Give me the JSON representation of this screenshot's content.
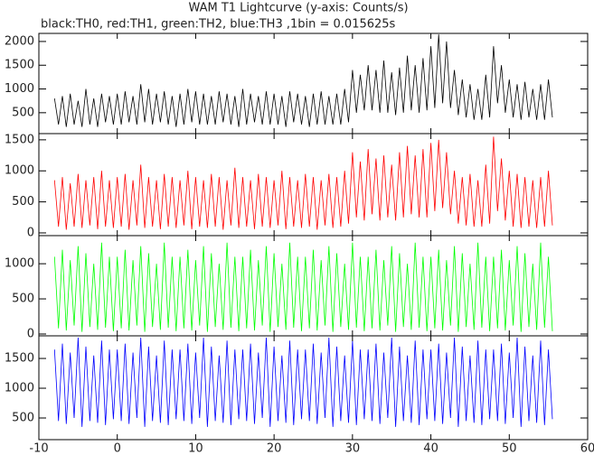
{
  "chart_data": [
    {
      "type": "line",
      "title": "WAM T1 Lightcurve (y-axis: Counts/s)",
      "subtitle": "black:TH0, red:TH1, green:TH2, blue:TH3 ,1bin = 0.015625s",
      "color": "#000000",
      "x": [
        -8,
        -7.5,
        -7,
        -6.5,
        -6,
        -5.5,
        -5,
        -4.5,
        -4,
        -3.5,
        -3,
        -2.5,
        -2,
        -1.5,
        -1,
        -0.5,
        0,
        0.5,
        1,
        1.5,
        2,
        2.5,
        3,
        3.5,
        4,
        4.5,
        5,
        5.5,
        6,
        6.5,
        7,
        7.5,
        8,
        8.5,
        9,
        9.5,
        10,
        10.5,
        11,
        11.5,
        12,
        12.5,
        13,
        13.5,
        14,
        14.5,
        15,
        15.5,
        16,
        16.5,
        17,
        17.5,
        18,
        18.5,
        19,
        19.5,
        20,
        20.5,
        21,
        21.5,
        22,
        22.5,
        23,
        23.5,
        24,
        24.5,
        25,
        25.5,
        26,
        26.5,
        27,
        27.5,
        28,
        28.5,
        29,
        29.5,
        30,
        30.5,
        31,
        31.5,
        32,
        32.5,
        33,
        33.5,
        34,
        34.5,
        35,
        35.5,
        36,
        36.5,
        37,
        37.5,
        38,
        38.5,
        39,
        39.5,
        40,
        40.5,
        41,
        41.5,
        42,
        42.5,
        43,
        43.5,
        44,
        44.5,
        45,
        45.5,
        46,
        46.5,
        47,
        47.5,
        48,
        48.5,
        49,
        49.5,
        50,
        50.5,
        51,
        51.5,
        52,
        52.5,
        53,
        53.5,
        54,
        54.5,
        55,
        55.5
      ],
      "values": [
        800,
        250,
        850,
        200,
        900,
        250,
        750,
        200,
        1000,
        250,
        800,
        200,
        900,
        300,
        850,
        250,
        900,
        250,
        950,
        300,
        850,
        250,
        1100,
        300,
        1000,
        250,
        900,
        300,
        950,
        250,
        850,
        200,
        900,
        250,
        1000,
        300,
        950,
        250,
        900,
        250,
        850,
        250,
        950,
        300,
        900,
        250,
        850,
        200,
        1000,
        250,
        900,
        300,
        850,
        250,
        950,
        250,
        900,
        250,
        850,
        200,
        950,
        300,
        900,
        250,
        850,
        200,
        900,
        250,
        950,
        250,
        850,
        250,
        900,
        250,
        1000,
        300,
        1400,
        500,
        1300,
        550,
        1500,
        550,
        1400,
        500,
        1600,
        500,
        1350,
        450,
        1450,
        500,
        1700,
        550,
        1500,
        500,
        1650,
        550,
        1900,
        600,
        2150,
        700,
        2000,
        600,
        1400,
        450,
        1200,
        400,
        1100,
        350,
        1000,
        350,
        1300,
        400,
        1900,
        700,
        1500,
        500,
        1200,
        400,
        1100,
        350,
        1150,
        400,
        1000,
        350,
        1100,
        350,
        1200,
        400
      ],
      "ylim": [
        60,
        2170
      ],
      "yticks": [
        500,
        1000,
        1500,
        2000
      ]
    },
    {
      "type": "line",
      "color": "#ff0000",
      "values": [
        850,
        100,
        900,
        50,
        800,
        100,
        950,
        80,
        850,
        120,
        900,
        60,
        1000,
        100,
        850,
        80,
        900,
        100,
        950,
        50,
        850,
        120,
        1100,
        80,
        900,
        100,
        850,
        60,
        950,
        100,
        900,
        80,
        850,
        120,
        1000,
        60,
        900,
        100,
        850,
        80,
        950,
        100,
        900,
        50,
        850,
        120,
        1050,
        80,
        900,
        100,
        850,
        60,
        950,
        100,
        900,
        80,
        850,
        120,
        1000,
        60,
        900,
        100,
        850,
        80,
        950,
        100,
        900,
        50,
        850,
        120,
        950,
        80,
        900,
        100,
        1000,
        150,
        1300,
        250,
        1150,
        200,
        1350,
        300,
        1200,
        200,
        1250,
        250,
        1100,
        200,
        1300,
        250,
        1400,
        300,
        1250,
        250,
        1350,
        250,
        1450,
        350,
        1500,
        400,
        1300,
        300,
        1000,
        150,
        900,
        120,
        950,
        100,
        850,
        100,
        1100,
        150,
        1550,
        350,
        1200,
        200,
        1000,
        100,
        950,
        80,
        900,
        100,
        850,
        80,
        900,
        100,
        1000,
        120
      ],
      "ylim": [
        -44,
        1600
      ],
      "yticks": [
        0,
        500,
        1000,
        1500
      ]
    },
    {
      "type": "line",
      "color": "#00ff00",
      "values": [
        1100,
        80,
        1200,
        50,
        1050,
        120,
        1250,
        30,
        1150,
        100,
        1000,
        60,
        1300,
        90,
        1100,
        40,
        1100,
        80,
        1200,
        50,
        1050,
        120,
        1250,
        30,
        1150,
        100,
        1000,
        60,
        1300,
        90,
        1100,
        40,
        1100,
        80,
        1200,
        50,
        1050,
        120,
        1250,
        30,
        1150,
        100,
        1000,
        60,
        1300,
        90,
        1100,
        40,
        1100,
        80,
        1200,
        50,
        1050,
        120,
        1250,
        30,
        1150,
        100,
        1000,
        60,
        1300,
        90,
        1100,
        40,
        1100,
        80,
        1200,
        50,
        1050,
        120,
        1250,
        30,
        1150,
        100,
        1000,
        60,
        1300,
        90,
        1100,
        40,
        1100,
        80,
        1200,
        50,
        1050,
        120,
        1250,
        30,
        1150,
        100,
        1000,
        60,
        1300,
        90,
        1100,
        40,
        1100,
        80,
        1200,
        50,
        1050,
        120,
        1250,
        30,
        1150,
        100,
        1000,
        60,
        1300,
        90,
        1100,
        40,
        1100,
        80,
        1200,
        50,
        1050,
        120,
        1250,
        30,
        1150,
        100,
        1000,
        60,
        1300,
        90,
        1100,
        40
      ],
      "ylim": [
        -26,
        1400
      ],
      "yticks": [
        0,
        500,
        1000
      ]
    },
    {
      "type": "line",
      "color": "#0000ff",
      "values": [
        1650,
        450,
        1750,
        400,
        1600,
        500,
        1850,
        350,
        1700,
        450,
        1550,
        420,
        1800,
        380,
        1650,
        480,
        1650,
        450,
        1750,
        400,
        1600,
        500,
        1850,
        350,
        1700,
        450,
        1550,
        420,
        1800,
        380,
        1650,
        480,
        1650,
        450,
        1750,
        400,
        1600,
        500,
        1850,
        350,
        1700,
        450,
        1550,
        420,
        1800,
        380,
        1650,
        480,
        1650,
        450,
        1750,
        400,
        1600,
        500,
        1850,
        350,
        1700,
        450,
        1550,
        420,
        1800,
        380,
        1650,
        480,
        1650,
        450,
        1750,
        400,
        1600,
        500,
        1850,
        350,
        1700,
        450,
        1550,
        420,
        1800,
        380,
        1650,
        480,
        1650,
        450,
        1750,
        400,
        1600,
        500,
        1850,
        350,
        1700,
        450,
        1550,
        420,
        1800,
        380,
        1650,
        480,
        1650,
        450,
        1750,
        400,
        1600,
        500,
        1850,
        350,
        1700,
        450,
        1550,
        420,
        1800,
        380,
        1650,
        480,
        1650,
        450,
        1750,
        400,
        1600,
        500,
        1850,
        350,
        1700,
        450,
        1550,
        420,
        1800,
        380,
        1650,
        480
      ],
      "ylim": [
        136,
        1880
      ],
      "yticks": [
        500,
        1000,
        1500
      ],
      "xlim": [
        -10,
        60
      ],
      "xticks": [
        -10,
        0,
        10,
        20,
        30,
        40,
        50,
        60
      ]
    }
  ]
}
